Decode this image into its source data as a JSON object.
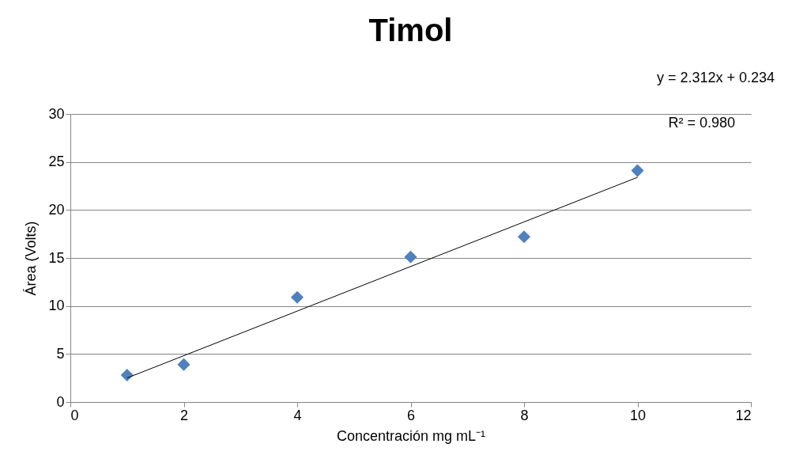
{
  "chart_data": {
    "type": "scatter",
    "title": "Timol",
    "xlabel": "Concentración mg mL⁻¹",
    "ylabel": "Área (Volts)",
    "annotations": [
      "y = 2.312x + 0.234",
      "R² = 0.980"
    ],
    "x": [
      1,
      2,
      4,
      6,
      8,
      10
    ],
    "series": [
      {
        "color": "#4f81bd",
        "marker": "diamond",
        "values": [
          2.8,
          3.9,
          10.9,
          15.1,
          17.2,
          24.1
        ]
      },
      {
        "type": "line",
        "color": "#000000",
        "marker": "none",
        "x": [
          1,
          10
        ],
        "values": [
          2.5,
          23.4
        ]
      }
    ],
    "xlim": [
      0,
      12
    ],
    "xticks": [
      0,
      2,
      4,
      6,
      8,
      10,
      12
    ],
    "ylim": [
      0,
      30
    ],
    "yticks": [
      0,
      5,
      10,
      15,
      20,
      25,
      30
    ],
    "grid": "y"
  }
}
